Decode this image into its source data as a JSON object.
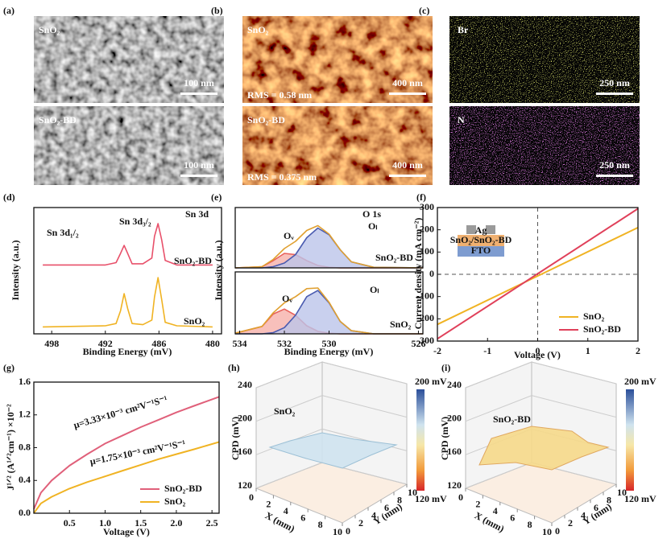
{
  "panel_labels": [
    "(a)",
    "(b)",
    "(c)",
    "(d)",
    "(e)",
    "(f)",
    "(g)",
    "(h)",
    "(i)"
  ],
  "images": [
    {
      "top": [
        "SnO₂",
        "100 nm"
      ],
      "bottom": [
        "SnO₂-BD",
        "100 nm"
      ]
    },
    {
      "top": [
        "SnO₂",
        "400 nm",
        "RMS = 0.58 nm"
      ],
      "bottom": [
        "SnO₂-BD",
        "400 nm",
        "RMS = 0.375 nm"
      ]
    },
    {
      "top": [
        "Br",
        "250 nm"
      ],
      "bottom": [
        "N",
        "250 nm"
      ]
    }
  ],
  "chart_data": [
    {
      "type": "line",
      "xlabel": "Binding Energy (mV)",
      "ylabel": "Intensity (a.u.)",
      "annotations": [
        "Sn 3d₁/₂",
        "Sn 3d₃/₂",
        "Sn 3d",
        "SnO₂-BD",
        "SnO₂"
      ],
      "xlim": [
        500,
        479
      ],
      "xticks": [
        498,
        492,
        486,
        480
      ],
      "ylim": [
        0,
        1.1
      ],
      "x": [
        499,
        492,
        490.8,
        490.3,
        489.9,
        489.5,
        489,
        487.8,
        486.8,
        486.5,
        486.1,
        485.7,
        485.3,
        484,
        480
      ],
      "series": [
        {
          "color": "#e8506a",
          "values": [
            0.6,
            0.6,
            0.62,
            0.7,
            0.77,
            0.7,
            0.61,
            0.61,
            0.66,
            0.85,
            0.96,
            0.82,
            0.64,
            0.6,
            0.6
          ]
        },
        {
          "color": "#f0b323",
          "values": [
            0.06,
            0.07,
            0.09,
            0.2,
            0.35,
            0.22,
            0.09,
            0.08,
            0.12,
            0.32,
            0.49,
            0.3,
            0.1,
            0.07,
            0.06
          ]
        }
      ]
    },
    {
      "type": "area",
      "ylabel": "Intensity (a.u.)",
      "annotations": [
        "Oᵥ",
        "Oₗ",
        "O 1s",
        "SnO₂-BD"
      ],
      "xlim": [
        534.2,
        525.8
      ],
      "ylim": [
        0,
        1
      ],
      "x": [
        534.2,
        533,
        532.5,
        532,
        531.5,
        531,
        530.5,
        530,
        529.5,
        529,
        528,
        525.8
      ],
      "series": [
        {
          "color": "#e8605a",
          "fill": "#f6b0aa",
          "values": [
            0,
            0.02,
            0.12,
            0.24,
            0.22,
            0.12,
            0.04,
            0.01,
            0,
            0,
            0,
            0
          ]
        },
        {
          "color": "#4a5bb0",
          "fill": "#bcc4ea",
          "values": [
            0,
            0,
            0.02,
            0.08,
            0.22,
            0.5,
            0.66,
            0.55,
            0.3,
            0.1,
            0.01,
            0
          ]
        },
        {
          "color": "#e0a030",
          "values": [
            0,
            0.02,
            0.14,
            0.32,
            0.44,
            0.62,
            0.7,
            0.56,
            0.3,
            0.1,
            0.01,
            0
          ]
        }
      ]
    },
    {
      "type": "area",
      "xlabel": "Binding Energy  (mV)",
      "annotations": [
        "Oᵥ",
        "Oₗ",
        "SnO₂"
      ],
      "xlim": [
        534.2,
        525.8
      ],
      "xticks": [
        534,
        532,
        530,
        526
      ],
      "ylim": [
        0,
        1
      ],
      "x": [
        534.2,
        533,
        532.5,
        532,
        531.5,
        531,
        530.5,
        530,
        529.5,
        529,
        528,
        525.8
      ],
      "series": [
        {
          "color": "#e8605a",
          "fill": "#f6b0aa",
          "values": [
            0.01,
            0.12,
            0.32,
            0.4,
            0.3,
            0.13,
            0.04,
            0.01,
            0,
            0,
            0,
            0
          ]
        },
        {
          "color": "#4a5bb0",
          "fill": "#bcc4ea",
          "values": [
            0,
            0,
            0.02,
            0.1,
            0.3,
            0.6,
            0.7,
            0.5,
            0.2,
            0.05,
            0,
            0
          ]
        },
        {
          "color": "#e0a030",
          "values": [
            0.01,
            0.12,
            0.34,
            0.5,
            0.6,
            0.73,
            0.74,
            0.51,
            0.2,
            0.05,
            0,
            0
          ]
        }
      ]
    },
    {
      "type": "line",
      "xlabel": "Voltage (V)",
      "ylabel": "Current density (mA cm⁻²)",
      "annotations": [
        "Ag",
        "SnO₂/SnO₂-BD",
        "FTO"
      ],
      "xlim": [
        -2,
        2
      ],
      "xticks": [
        -2,
        -1,
        0,
        1,
        2
      ],
      "ylim": [
        -300,
        300
      ],
      "yticks": [
        -300,
        -200,
        -100,
        0,
        100,
        200,
        300
      ],
      "x": [
        -2,
        2
      ],
      "legend": "lower right",
      "series": [
        {
          "name": "SnO₂",
          "color": "#f0b323",
          "values": [
            -225,
            210
          ]
        },
        {
          "name": "SnO₂-BD",
          "color": "#e0405a",
          "values": [
            -290,
            295
          ]
        }
      ]
    },
    {
      "type": "line",
      "xlabel": "Voltage (V)",
      "ylabel": "J¹ᐟ² (A¹ᐟ²cm⁻¹) ×10⁻²",
      "annotations": [
        "μ=3.33×10⁻³ cm²V⁻¹S⁻¹",
        "μ=1.75×10⁻³ cm²V⁻¹S⁻¹"
      ],
      "xlim": [
        0,
        2.6
      ],
      "xticks": [
        0.5,
        {
          "value": 1,
          "label": "1.0"
        },
        1.5,
        {
          "value": 2,
          "label": "2.0"
        },
        2.5
      ],
      "ylim": [
        0,
        1.6
      ],
      "yticks": [
        {
          "value": 0,
          "label": "0.0"
        },
        0.4,
        0.8,
        1.2,
        1.6
      ],
      "x": [
        0,
        0.1,
        0.25,
        0.5,
        0.75,
        1,
        1.25,
        1.5,
        1.75,
        2,
        2.25,
        2.6
      ],
      "legend": "lower right",
      "series": [
        {
          "name": "SnO₂-BD",
          "color": "#e0607a",
          "values": [
            0.05,
            0.25,
            0.4,
            0.58,
            0.72,
            0.85,
            0.95,
            1.05,
            1.14,
            1.23,
            1.31,
            1.42
          ]
        },
        {
          "name": "SnO₂",
          "color": "#f0b323",
          "values": [
            0,
            0.12,
            0.2,
            0.3,
            0.38,
            0.45,
            0.52,
            0.59,
            0.66,
            0.72,
            0.78,
            0.87
          ]
        }
      ]
    }
  ],
  "surfaces": [
    {
      "label": "SnO₂",
      "zlabel": "CPD (mV)",
      "xlabel": "X (mm)",
      "ylabel": "Y (mm)",
      "zticks": [
        120,
        160,
        200,
        240
      ],
      "xticks": [
        0,
        2,
        4,
        6,
        8,
        10
      ],
      "yticks": [
        0,
        2,
        4,
        6,
        8,
        10
      ],
      "colorbar": [
        "200 mV",
        "120 mV"
      ]
    },
    {
      "label": "SnO₂-BD",
      "zlabel": "CPD (mV)",
      "xlabel": "X (mm)",
      "ylabel": "Y (mm)",
      "zticks": [
        120,
        160,
        200,
        240
      ],
      "xticks": [
        0,
        2,
        4,
        6,
        8,
        10
      ],
      "yticks": [
        0,
        2,
        4,
        6,
        8,
        10
      ],
      "colorbar": [
        "200 mV",
        "120 mV"
      ]
    }
  ]
}
